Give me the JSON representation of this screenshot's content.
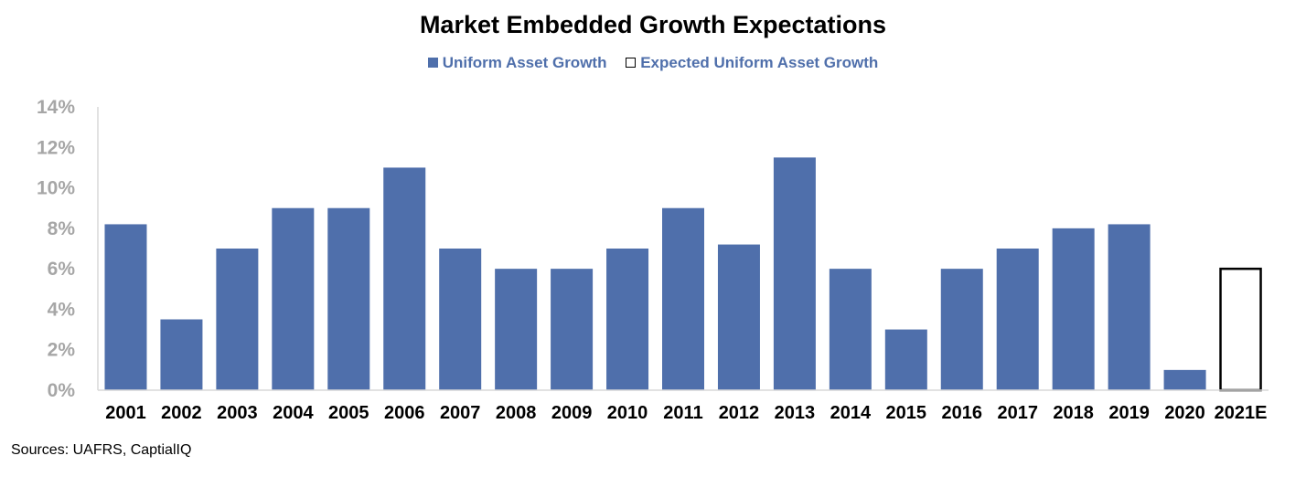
{
  "chart_data": {
    "type": "bar",
    "title": "Market Embedded Growth Expectations",
    "categories": [
      "2001",
      "2002",
      "2003",
      "2004",
      "2005",
      "2006",
      "2007",
      "2008",
      "2009",
      "2010",
      "2011",
      "2012",
      "2013",
      "2014",
      "2015",
      "2016",
      "2017",
      "2018",
      "2019",
      "2020",
      "2021E"
    ],
    "series": [
      {
        "name": "Uniform Asset Growth",
        "color": "#4f6fab",
        "style": "filled",
        "values": [
          8.2,
          3.5,
          7.0,
          9.0,
          9.0,
          11.0,
          7.0,
          6.0,
          6.0,
          7.0,
          9.0,
          7.2,
          11.5,
          6.0,
          3.0,
          6.0,
          7.0,
          8.0,
          8.2,
          1.0,
          null
        ]
      },
      {
        "name": "Expected Uniform Asset Growth",
        "color": "#000000",
        "style": "outline",
        "values": [
          null,
          null,
          null,
          null,
          null,
          null,
          null,
          null,
          null,
          null,
          null,
          null,
          null,
          null,
          null,
          null,
          null,
          null,
          null,
          null,
          6.0
        ]
      }
    ],
    "ylim": [
      0,
      14
    ],
    "yticks": [
      0,
      2,
      4,
      6,
      8,
      10,
      12,
      14
    ],
    "ytick_labels": [
      "0%",
      "2%",
      "4%",
      "6%",
      "8%",
      "10%",
      "12%",
      "14%"
    ],
    "xlabel": "",
    "ylabel": "",
    "grid": false,
    "legend_position": "top-center"
  },
  "source_note": "Sources: UAFRS, CaptialIQ"
}
